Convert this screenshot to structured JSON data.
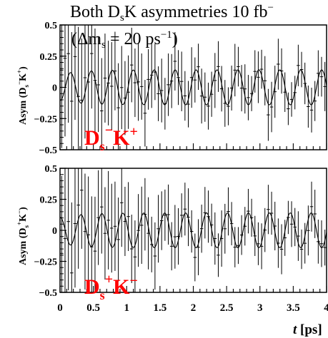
{
  "title_main": "Both D",
  "title_sub": "s",
  "title_rest": "K asymmetries 10 fb",
  "title_sup": "−",
  "subtitle_open": "(",
  "subtitle_dm": "Δm",
  "subtitle_dm_sub": "s",
  "subtitle_eq": " = 20 ps",
  "subtitle_exp": "−1",
  "subtitle_close": ")",
  "xlabel_t": "t",
  "xlabel_unit": " [ps]",
  "colors": {
    "axis": "#000000",
    "data": "#000000",
    "fit": "#000000",
    "label": "#ff0000"
  },
  "chart_data": [
    {
      "type": "scatter",
      "panel": "top",
      "ylabel_main": "Asym (D",
      "ylabel_sub": "s",
      "ylabel_sup": "−",
      "ylabel_rest": "K",
      "ylabel_sup2": "+",
      "ylabel_close": ")",
      "label_main": "D",
      "label_sub": "s",
      "label_sup": "−",
      "label_rest": "K",
      "label_sup2": "+",
      "xlim": [
        0,
        4
      ],
      "ylim": [
        -0.5,
        0.5
      ],
      "yticks": [
        "0.5",
        "0.25",
        "0",
        "−0.25",
        "−0.5"
      ],
      "ytick_values": [
        0.5,
        0.25,
        0,
        -0.25,
        -0.5
      ],
      "fit": {
        "amplitude": 0.14,
        "frequency_ps_inv": 20,
        "phase": 1.5707963,
        "sign": -1
      },
      "points": 80,
      "seed": 7
    },
    {
      "type": "scatter",
      "panel": "bottom",
      "ylabel_main": "Asym (D",
      "ylabel_sub": "s",
      "ylabel_sup": "+",
      "ylabel_rest": "K",
      "ylabel_sup2": "−",
      "ylabel_close": ")",
      "label_main": "D",
      "label_sub": "s",
      "label_sup": "+",
      "label_rest": "K",
      "label_sup2": "−",
      "xlim": [
        0,
        4
      ],
      "ylim": [
        -0.5,
        0.5
      ],
      "yticks": [
        "0.5",
        "0.25",
        "0",
        "−0.25",
        "−0.5"
      ],
      "ytick_values": [
        0.5,
        0.25,
        0,
        -0.25,
        -0.5
      ],
      "xticks": [
        "0",
        "0.5",
        "1",
        "1.5",
        "2",
        "2.5",
        "3",
        "3.5",
        "4"
      ],
      "xtick_values": [
        0,
        0.5,
        1,
        1.5,
        2,
        2.5,
        3,
        3.5,
        4
      ],
      "fit": {
        "amplitude": 0.14,
        "frequency_ps_inv": 20,
        "phase": 1.5707963,
        "sign": 1
      },
      "points": 80,
      "seed": 19
    }
  ]
}
